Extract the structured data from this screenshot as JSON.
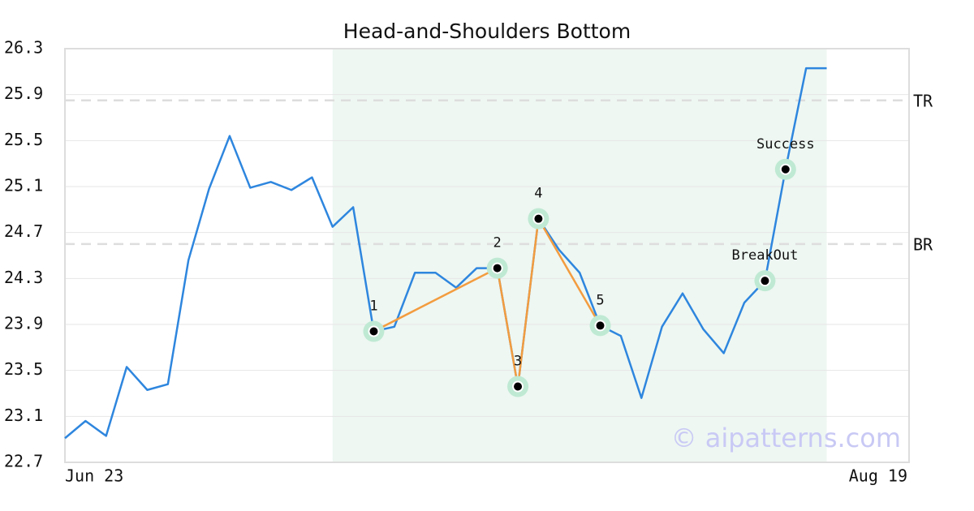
{
  "chart_data": {
    "type": "line",
    "title": "Head-and-Shoulders Bottom",
    "categories": [
      "Jun 23",
      null,
      null,
      null,
      null,
      null,
      null,
      null,
      null,
      null,
      null,
      null,
      null,
      null,
      null,
      null,
      null,
      null,
      null,
      null,
      null,
      null,
      null,
      null,
      null,
      null,
      null,
      null,
      null,
      null,
      null,
      null,
      null,
      null,
      null,
      null,
      null,
      null,
      null,
      null,
      null,
      "Aug 19"
    ],
    "series": [
      {
        "color": "#2e86de",
        "values": [
          22.91,
          23.06,
          22.93,
          23.53,
          23.33,
          23.38,
          24.46,
          25.08,
          25.54,
          25.09,
          25.14,
          25.07,
          25.18,
          24.75,
          24.92,
          23.84,
          23.88,
          24.35,
          24.35,
          24.22,
          24.39,
          24.39,
          23.36,
          24.82,
          24.55,
          24.35,
          23.89,
          23.8,
          23.26,
          23.88,
          24.17,
          23.86,
          23.65,
          24.09,
          24.28,
          25.25,
          26.13,
          26.13,
          null,
          null,
          null,
          null
        ]
      }
    ],
    "ylim": [
      22.7,
      26.3
    ],
    "yticks": [
      22.7,
      23.1,
      23.5,
      23.9,
      24.3,
      24.7,
      25.1,
      25.5,
      25.9,
      26.3
    ],
    "grid": true,
    "highlight": [
      13,
      37
    ],
    "pattern_color": "#f39c3f",
    "pattern_points": [
      {
        "label": "1",
        "x": 15,
        "value": 23.84
      },
      {
        "label": "2",
        "x": 21,
        "value": 24.39
      },
      {
        "label": "3",
        "x": 22,
        "value": 23.36
      },
      {
        "label": "4",
        "x": 23,
        "value": 24.82
      },
      {
        "label": "5",
        "x": 26,
        "value": 23.89
      }
    ],
    "signal_points": [
      {
        "label": "BreakOut",
        "x": 34,
        "value": 24.28
      },
      {
        "label": "Success",
        "x": 35,
        "value": 25.25
      }
    ],
    "levels": [
      {
        "label": "TR",
        "value": 25.85
      },
      {
        "label": "BR",
        "value": 24.6
      }
    ],
    "watermark": "© aipatterns.com"
  }
}
